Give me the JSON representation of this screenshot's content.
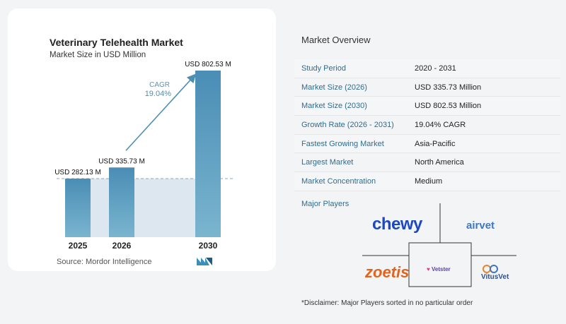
{
  "chart_data": {
    "type": "bar",
    "title": "Veterinary Telehealth Market",
    "subtitle": "Market Size in USD Million",
    "categories": [
      "2025",
      "2026",
      "2030"
    ],
    "values": [
      282.13,
      335.73,
      802.53
    ],
    "value_labels": [
      "USD 282.13 M",
      "USD 335.73 M",
      "USD 802.53 M"
    ],
    "cagr_label": "CAGR",
    "cagr_value": "19.04%",
    "ylim": [
      0,
      850
    ],
    "bar_color": "#5b9bbd",
    "bar_top_color": "#3e7fa5"
  },
  "source": "Source:  Mordor Intelligence",
  "overview": {
    "title": "Market Overview",
    "rows": [
      {
        "k": "Study Period",
        "v": "2020 - 2031"
      },
      {
        "k": "Market Size (2026)",
        "v": "USD 335.73 Million"
      },
      {
        "k": "Market Size (2030)",
        "v": "USD 802.53 Million"
      },
      {
        "k": "Growth Rate (2026 - 2031)",
        "v": "19.04% CAGR"
      },
      {
        "k": "Fastest Growing Market",
        "v": "Asia-Pacific"
      },
      {
        "k": "Largest Market",
        "v": "North America"
      },
      {
        "k": "Market Concentration",
        "v": "Medium"
      }
    ]
  },
  "players": {
    "title": "Major Players",
    "names": [
      "chewy",
      "airvet",
      "zoetis",
      "Vetster",
      "VitusVet"
    ]
  },
  "disclaimer": "*Disclaimer: Major Players sorted in no particular order"
}
